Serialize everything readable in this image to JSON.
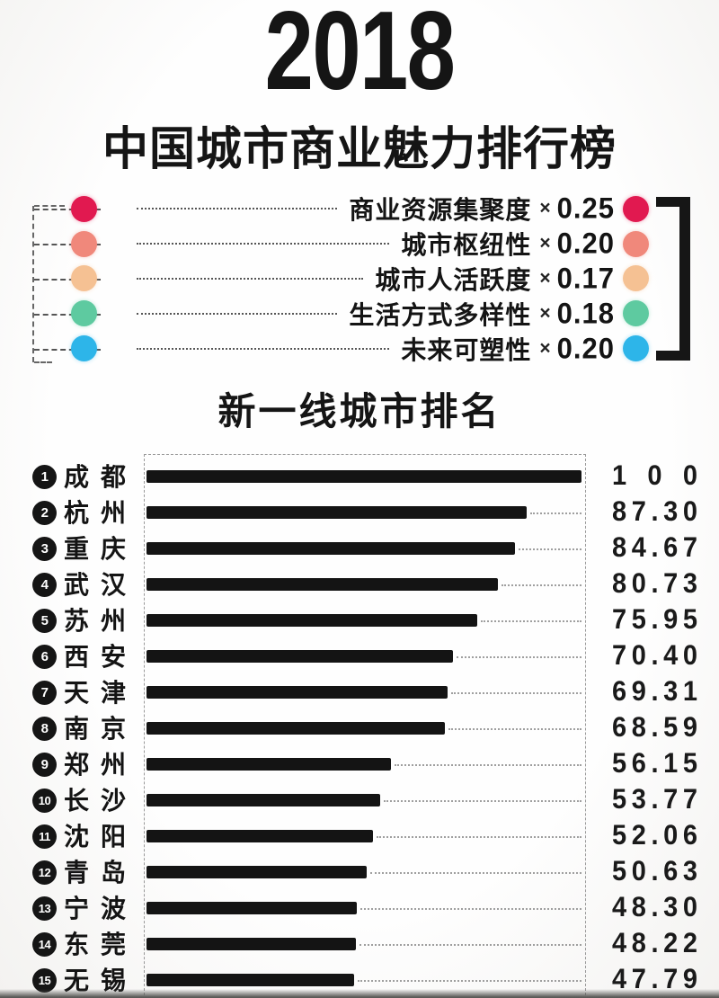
{
  "header": {
    "year": "2018",
    "title": "中国城市商业魅力排行榜"
  },
  "legend": {
    "multiplier_symbol": "×",
    "items": [
      {
        "label": "商业资源集聚度",
        "weight": "0.25",
        "color": "#e11950"
      },
      {
        "label": "城市枢纽性",
        "weight": "0.20",
        "color": "#f0887b"
      },
      {
        "label": "城市人活跃度",
        "weight": "0.17",
        "color": "#f5c193"
      },
      {
        "label": "生活方式多样性",
        "weight": "0.18",
        "color": "#5ecaa0"
      },
      {
        "label": "未来可塑性",
        "weight": "0.20",
        "color": "#2db5e9"
      }
    ]
  },
  "section": {
    "title": "新一线城市排名"
  },
  "chart_data": {
    "type": "bar",
    "orientation": "horizontal",
    "title": "新一线城市排名",
    "xlim": [
      0,
      100
    ],
    "bar_color": "#141414",
    "grid": false,
    "categories": [
      "成都",
      "杭州",
      "重庆",
      "武汉",
      "苏州",
      "西安",
      "天津",
      "南京",
      "郑州",
      "长沙",
      "沈阳",
      "青岛",
      "宁波",
      "东莞",
      "无锡"
    ],
    "ranks": [
      1,
      2,
      3,
      4,
      5,
      6,
      7,
      8,
      9,
      10,
      11,
      12,
      13,
      14,
      15
    ],
    "values": [
      100,
      87.3,
      84.67,
      80.73,
      75.95,
      70.4,
      69.31,
      68.59,
      56.15,
      53.77,
      52.06,
      50.63,
      48.3,
      48.22,
      47.79
    ],
    "value_labels": [
      "100",
      "87.30",
      "84.67",
      "80.73",
      "75.95",
      "70.40",
      "69.31",
      "68.59",
      "56.15",
      "53.77",
      "52.06",
      "50.63",
      "48.30",
      "48.22",
      "47.79"
    ]
  }
}
